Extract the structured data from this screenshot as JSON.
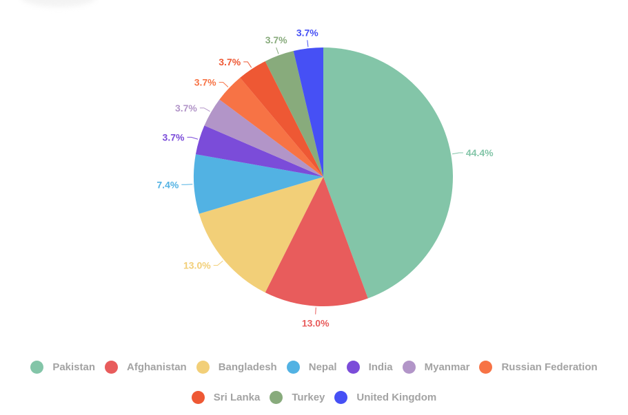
{
  "chart_data": {
    "type": "pie",
    "title": "",
    "categories": [
      "Pakistan",
      "Afghanistan",
      "Bangladesh",
      "Nepal",
      "India",
      "Myanmar",
      "Russian Federation",
      "Sri Lanka",
      "Turkey",
      "United Kingdom"
    ],
    "values": [
      44.4,
      13.0,
      13.0,
      7.4,
      3.7,
      3.7,
      3.7,
      3.7,
      3.7,
      3.7
    ],
    "labels": [
      "44.4%",
      "13.0%",
      "13.0%",
      "7.4%",
      "3.7%",
      "3.7%",
      "3.7%",
      "3.7%",
      "3.7%",
      "3.7%"
    ],
    "colors": [
      "#83c5a8",
      "#e85c5c",
      "#f2cf78",
      "#52b2e3",
      "#7b4cd9",
      "#b295c8",
      "#f77345",
      "#ee5834",
      "#88ab7c",
      "#4650f5"
    ],
    "label_colors": [
      "#83c5a8",
      "#e85c5c",
      "#f2cf78",
      "#52b2e3",
      "#7b4cd9",
      "#b295c8",
      "#f77345",
      "#ee5834",
      "#88ab7c",
      "#4650f5"
    ],
    "legend_position": "bottom"
  },
  "legend": {
    "row1": [
      {
        "label": "Pakistan",
        "color": "#83c5a8"
      },
      {
        "label": "Afghanistan",
        "color": "#e85c5c"
      },
      {
        "label": "Bangladesh",
        "color": "#f2cf78"
      },
      {
        "label": "Nepal",
        "color": "#52b2e3"
      },
      {
        "label": "India",
        "color": "#7b4cd9"
      },
      {
        "label": "Myanmar",
        "color": "#b295c8"
      },
      {
        "label": "Russian Federation",
        "color": "#f77345"
      }
    ],
    "row2": [
      {
        "label": "Sri Lanka",
        "color": "#ee5834"
      },
      {
        "label": "Turkey",
        "color": "#88ab7c"
      },
      {
        "label": "United Kingdom",
        "color": "#4650f5"
      }
    ]
  }
}
